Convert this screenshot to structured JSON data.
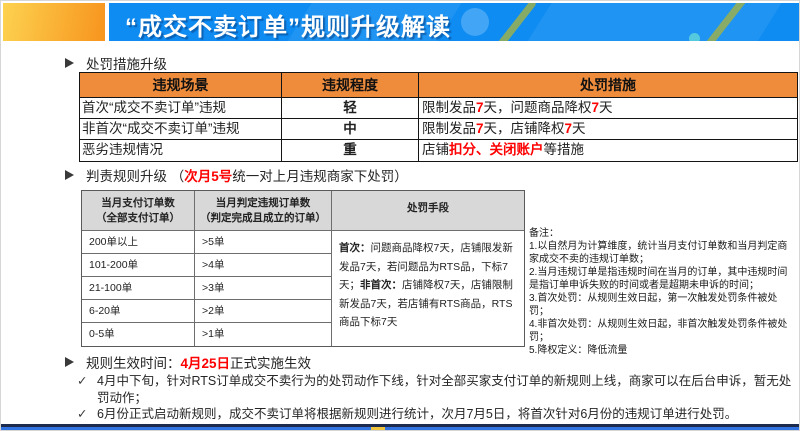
{
  "header": {
    "title": "“成交不卖订单”规则升级解读"
  },
  "glyphs": {
    "check": "✓"
  },
  "colors": {
    "header_blue": "#0E8CF2",
    "accent_orange_from": "#FDD24F",
    "accent_orange_to": "#F7941E",
    "table_header_orange": "#EE8C3C",
    "highlight_red": "#FE0000",
    "footer_blue": "#3173E0",
    "footer_yellow": "#F0C43C"
  },
  "penalty_section": {
    "heading": "处罚措施升级",
    "table": {
      "headers": [
        "违规场景",
        "违规程度",
        "处罚措施"
      ],
      "rows": [
        {
          "scene": "首次“成交不卖订单”违规",
          "level": "轻",
          "measure": [
            {
              "t": "限制发品"
            },
            {
              "t": "7",
              "red": true
            },
            {
              "t": "天，问题商品降权"
            },
            {
              "t": "7",
              "red": true
            },
            {
              "t": "天"
            }
          ]
        },
        {
          "scene": "非首次“成交不卖订单”违规",
          "level": "中",
          "measure": [
            {
              "t": "限制发品"
            },
            {
              "t": "7",
              "red": true
            },
            {
              "t": "天，店铺降权"
            },
            {
              "t": "7",
              "red": true
            },
            {
              "t": "天"
            }
          ]
        },
        {
          "scene": "恶劣违规情况",
          "level": "重",
          "measure": [
            {
              "t": "店铺"
            },
            {
              "t": "扣分、关闭账户",
              "red": true
            },
            {
              "t": "等措施"
            }
          ]
        }
      ]
    }
  },
  "judgement_section": {
    "heading": [
      {
        "t": "判责规则升级 （"
      },
      {
        "t": "次月5号",
        "red": true,
        "bold": true
      },
      {
        "t": "统一对上月违规商家下处罚）"
      }
    ],
    "table": {
      "col1_header": [
        "当月支付订单数",
        "（全部支付订单）"
      ],
      "col2_header": [
        "当月判定违规订单数",
        "（判定完成且成立的订单）"
      ],
      "col3_header": "处罚手段",
      "rows": [
        {
          "orders": "200单以上",
          "violations": ">5单"
        },
        {
          "orders": "101-200单",
          "violations": ">4单"
        },
        {
          "orders": "21-100单",
          "violations": ">3单"
        },
        {
          "orders": "6-20单",
          "violations": ">2单"
        },
        {
          "orders": "0-5单",
          "violations": ">1单"
        }
      ],
      "penalty_cell": [
        {
          "t": "首次：",
          "bold": true
        },
        {
          "t": "问题商品降权7天，店铺限发新发品7天，若问题品为RTS品，下标7天；"
        },
        {
          "t": "非首次：",
          "bold": true
        },
        {
          "t": "店铺降权7天，店铺限制新发品7天，若店铺有RTS商品，RTS商品下标7天"
        }
      ]
    },
    "notes": [
      "备注：",
      "1.以自然月为计算维度，统计当月支付订单数和当月判定商家成交不卖的违规订单数；",
      "2.当月违规订单是指违规时间在当月的订单，其中违规时间是指订单申诉失败的时间或者是超期未申诉的时间；",
      "3.首次处罚：从规则生效日起，第一次触发处罚条件被处罚；",
      "4.非首次处罚：从规则生效日起，非首次触发处罚条件被处罚；",
      "5.降权定义：降低流量"
    ]
  },
  "effective_section": {
    "heading": [
      {
        "t": "规则生效时间："
      },
      {
        "t": "4月25日",
        "red": true,
        "bold": true
      },
      {
        "t": "正式实施生效"
      }
    ],
    "bullets": [
      "4月中下旬，针对RTS订单成交不卖行为的处罚动作下线，针对全部买家支付订单的新规则上线，商家可以在后台申诉，暂无处罚动作；",
      "6月份正式启动新规则，成交不卖订单将根据新规则进行统计，次月7月5日，将首次针对6月份的违规订单进行处罚。"
    ]
  }
}
